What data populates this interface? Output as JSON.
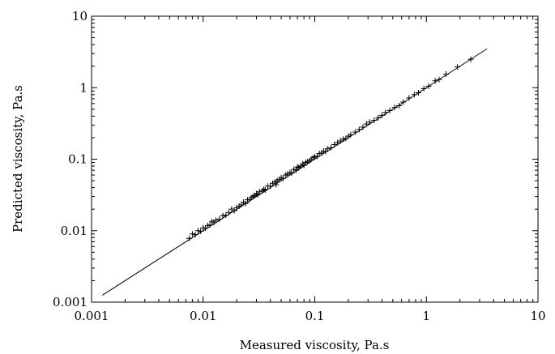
{
  "chart_data": {
    "type": "scatter",
    "title": "",
    "xlabel": "Measured viscosity, Pa.s",
    "ylabel": "Predicted viscosity, Pa.s",
    "xscale": "log",
    "yscale": "log",
    "xlim": [
      0.001,
      10
    ],
    "ylim": [
      0.001,
      10
    ],
    "grid": false,
    "legend": "none",
    "marker": "plus",
    "x_ticks": [
      {
        "value": 0.001,
        "label": "0.001"
      },
      {
        "value": 0.01,
        "label": "0.01"
      },
      {
        "value": 0.1,
        "label": "0.1"
      },
      {
        "value": 1,
        "label": "1"
      },
      {
        "value": 10,
        "label": "10"
      }
    ],
    "y_ticks": [
      {
        "value": 0.001,
        "label": "0.001"
      },
      {
        "value": 0.01,
        "label": "0.01"
      },
      {
        "value": 0.1,
        "label": "0.1"
      },
      {
        "value": 1,
        "label": "1"
      },
      {
        "value": 10,
        "label": "10"
      }
    ],
    "reference_line": {
      "x": [
        0.00125,
        3.5
      ],
      "y": [
        0.00125,
        3.5
      ]
    },
    "series": [
      {
        "points": [
          [
            0.0075,
            0.0078
          ],
          [
            0.008,
            0.009
          ],
          [
            0.0085,
            0.0088
          ],
          [
            0.009,
            0.01
          ],
          [
            0.0095,
            0.0098
          ],
          [
            0.01,
            0.011
          ],
          [
            0.0105,
            0.0108
          ],
          [
            0.011,
            0.0118
          ],
          [
            0.0115,
            0.012
          ],
          [
            0.012,
            0.0135
          ],
          [
            0.0125,
            0.013
          ],
          [
            0.013,
            0.014
          ],
          [
            0.014,
            0.0145
          ],
          [
            0.015,
            0.0162
          ],
          [
            0.016,
            0.0165
          ],
          [
            0.017,
            0.018
          ],
          [
            0.018,
            0.02
          ],
          [
            0.019,
            0.019
          ],
          [
            0.02,
            0.021
          ],
          [
            0.021,
            0.022
          ],
          [
            0.022,
            0.023
          ],
          [
            0.023,
            0.025
          ],
          [
            0.024,
            0.024
          ],
          [
            0.025,
            0.027
          ],
          [
            0.026,
            0.027
          ],
          [
            0.027,
            0.029
          ],
          [
            0.028,
            0.03
          ],
          [
            0.029,
            0.031
          ],
          [
            0.03,
            0.033
          ],
          [
            0.031,
            0.032
          ],
          [
            0.032,
            0.035
          ],
          [
            0.034,
            0.036
          ],
          [
            0.035,
            0.038
          ],
          [
            0.036,
            0.037
          ],
          [
            0.038,
            0.042
          ],
          [
            0.04,
            0.042
          ],
          [
            0.042,
            0.046
          ],
          [
            0.044,
            0.048
          ],
          [
            0.045,
            0.044
          ],
          [
            0.046,
            0.05
          ],
          [
            0.048,
            0.052
          ],
          [
            0.05,
            0.055
          ],
          [
            0.052,
            0.054
          ],
          [
            0.055,
            0.06
          ],
          [
            0.057,
            0.062
          ],
          [
            0.06,
            0.065
          ],
          [
            0.062,
            0.064
          ],
          [
            0.065,
            0.072
          ],
          [
            0.068,
            0.07
          ],
          [
            0.07,
            0.078
          ],
          [
            0.072,
            0.076
          ],
          [
            0.075,
            0.08
          ],
          [
            0.078,
            0.086
          ],
          [
            0.08,
            0.082
          ],
          [
            0.083,
            0.09
          ],
          [
            0.086,
            0.092
          ],
          [
            0.09,
            0.095
          ],
          [
            0.093,
            0.1
          ],
          [
            0.097,
            0.105
          ],
          [
            0.1,
            0.108
          ],
          [
            0.105,
            0.11
          ],
          [
            0.11,
            0.12
          ],
          [
            0.115,
            0.122
          ],
          [
            0.12,
            0.13
          ],
          [
            0.125,
            0.128
          ],
          [
            0.13,
            0.14
          ],
          [
            0.14,
            0.145
          ],
          [
            0.15,
            0.16
          ],
          [
            0.16,
            0.17
          ],
          [
            0.17,
            0.18
          ],
          [
            0.18,
            0.19
          ],
          [
            0.19,
            0.195
          ],
          [
            0.2,
            0.21
          ],
          [
            0.21,
            0.22
          ],
          [
            0.23,
            0.24
          ],
          [
            0.25,
            0.26
          ],
          [
            0.27,
            0.28
          ],
          [
            0.29,
            0.31
          ],
          [
            0.31,
            0.33
          ],
          [
            0.34,
            0.35
          ],
          [
            0.37,
            0.38
          ],
          [
            0.4,
            0.41
          ],
          [
            0.43,
            0.45
          ],
          [
            0.47,
            0.48
          ],
          [
            0.52,
            0.53
          ],
          [
            0.57,
            0.56
          ],
          [
            0.62,
            0.63
          ],
          [
            0.7,
            0.72
          ],
          [
            0.78,
            0.8
          ],
          [
            0.85,
            0.85
          ],
          [
            0.95,
            0.97
          ],
          [
            1.05,
            1.05
          ],
          [
            1.2,
            1.25
          ],
          [
            1.3,
            1.3
          ],
          [
            1.5,
            1.55
          ],
          [
            1.9,
            1.95
          ],
          [
            2.5,
            2.5
          ]
        ]
      }
    ]
  }
}
